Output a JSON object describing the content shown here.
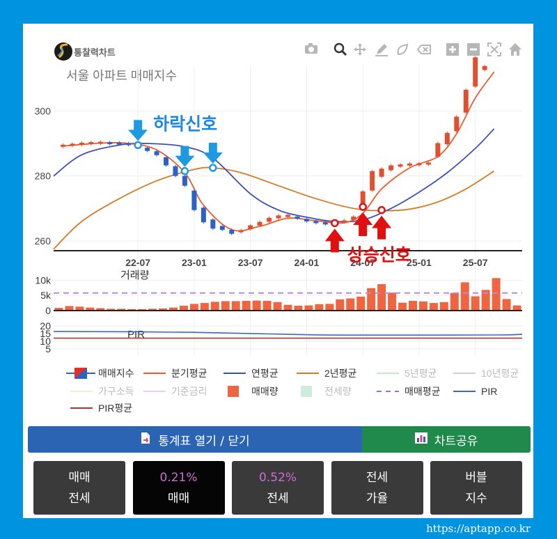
{
  "brand": {
    "name": "통찰력차트",
    "icon": "brand-logo-icon"
  },
  "toolbar": [
    "camera-icon",
    "zoom-icon",
    "pan-icon",
    "draw-line-icon",
    "draw-open-icon",
    "erase-icon",
    "zoom-in-icon",
    "zoom-out-icon",
    "autoscale-icon",
    "reset-home-icon"
  ],
  "chart_data": {
    "type": "line",
    "title": "서울 아파트 매매지수",
    "x_range": [
      "2021-10",
      "2025-12"
    ],
    "x_ticks": [
      "22-07",
      "23-01",
      "23-07",
      "24-01",
      "24-07",
      "25-01",
      "25-07"
    ],
    "y_ticks": [
      260,
      280,
      300
    ],
    "ylim": [
      257,
      314
    ],
    "annotations": [
      {
        "text": "하락신호",
        "color": "#1e88e5"
      },
      {
        "text": "상승신호",
        "color": "#e01010"
      }
    ],
    "down_signals": [
      {
        "date": "2022-07",
        "value": 289.5
      },
      {
        "date": "2022-12",
        "value": 281.5
      },
      {
        "date": "2023-03",
        "value": 282.5
      }
    ],
    "up_signals": [
      {
        "date": "2024-04",
        "value": 265.5
      },
      {
        "date": "2024-07",
        "value": 270.5
      },
      {
        "date": "2024-09",
        "value": 269.5
      }
    ],
    "series": [
      {
        "name": "매매지수",
        "color": "#e05030",
        "type": "candle",
        "points": [
          [
            "2021-11",
            289.3
          ],
          [
            "2021-12",
            289.6
          ],
          [
            "2022-01",
            289.9
          ],
          [
            "2022-02",
            290.1
          ],
          [
            "2022-03",
            290.2
          ],
          [
            "2022-04",
            290.1
          ],
          [
            "2022-05",
            290.0
          ],
          [
            "2022-06",
            289.8
          ],
          [
            "2022-07",
            289.2
          ],
          [
            "2022-08",
            288.2
          ],
          [
            "2022-09",
            287.0
          ],
          [
            "2022-10",
            284.5
          ],
          [
            "2022-11",
            281.5
          ],
          [
            "2022-12",
            278.5
          ],
          [
            "2023-01",
            272.5
          ],
          [
            "2023-02",
            268.0
          ],
          [
            "2023-03",
            265.2
          ],
          [
            "2023-04",
            264.0
          ],
          [
            "2023-05",
            262.8
          ],
          [
            "2023-06",
            263.0
          ],
          [
            "2023-07",
            264.2
          ],
          [
            "2023-08",
            265.3
          ],
          [
            "2023-09",
            266.5
          ],
          [
            "2023-10",
            267.4
          ],
          [
            "2023-11",
            267.7
          ],
          [
            "2023-12",
            267.2
          ],
          [
            "2024-01",
            266.4
          ],
          [
            "2024-02",
            265.8
          ],
          [
            "2024-03",
            265.4
          ],
          [
            "2024-04",
            265.3
          ],
          [
            "2024-05",
            266.0
          ],
          [
            "2024-06",
            267.0
          ],
          [
            "2024-07",
            272.5
          ],
          [
            "2024-08",
            278.5
          ],
          [
            "2024-09",
            281.0
          ],
          [
            "2024-10",
            282.5
          ],
          [
            "2024-11",
            283.2
          ],
          [
            "2024-12",
            283.5
          ],
          [
            "2025-01",
            283.6
          ],
          [
            "2025-02",
            283.8
          ],
          [
            "2025-03",
            288.0
          ],
          [
            "2025-04",
            291.5
          ],
          [
            "2025-05",
            296.0
          ],
          [
            "2025-06",
            303.0
          ],
          [
            "2025-07",
            312.0
          ],
          [
            "2025-08",
            313.2
          ]
        ]
      },
      {
        "name": "분기평균",
        "color": "#ee5a2a",
        "points": [
          [
            "2021-11",
            289.2
          ],
          [
            "2022-03",
            290.1
          ],
          [
            "2022-06",
            290.0
          ],
          [
            "2022-09",
            288.0
          ],
          [
            "2022-12",
            281.0
          ],
          [
            "2023-02",
            271.0
          ],
          [
            "2023-05",
            263.5
          ],
          [
            "2023-08",
            264.5
          ],
          [
            "2023-11",
            267.0
          ],
          [
            "2024-02",
            266.2
          ],
          [
            "2024-05",
            265.6
          ],
          [
            "2024-07",
            268.5
          ],
          [
            "2024-09",
            276.0
          ],
          [
            "2024-12",
            282.5
          ],
          [
            "2025-03",
            286.0
          ],
          [
            "2025-05",
            293.0
          ],
          [
            "2025-07",
            304.0
          ],
          [
            "2025-09",
            312.0
          ]
        ]
      },
      {
        "name": "연평균",
        "color": "#3a4fb8",
        "points": [
          [
            "2021-10",
            280.0
          ],
          [
            "2022-01",
            286.5
          ],
          [
            "2022-05",
            289.5
          ],
          [
            "2022-08",
            290.0
          ],
          [
            "2022-12",
            289.0
          ],
          [
            "2023-03",
            285.5
          ],
          [
            "2023-07",
            274.5
          ],
          [
            "2023-10",
            269.5
          ],
          [
            "2024-01",
            267.3
          ],
          [
            "2024-04",
            266.0
          ],
          [
            "2024-07",
            266.5
          ],
          [
            "2024-10",
            270.0
          ],
          [
            "2025-01",
            275.0
          ],
          [
            "2025-04",
            281.0
          ],
          [
            "2025-07",
            288.5
          ],
          [
            "2025-09",
            294.5
          ]
        ]
      },
      {
        "name": "2년평균",
        "color": "#d87a22",
        "points": [
          [
            "2021-10",
            257.5
          ],
          [
            "2022-01",
            266.0
          ],
          [
            "2022-05",
            273.0
          ],
          [
            "2022-09",
            278.5
          ],
          [
            "2023-01",
            282.0
          ],
          [
            "2023-03",
            282.5
          ],
          [
            "2023-06",
            281.0
          ],
          [
            "2023-10",
            277.0
          ],
          [
            "2024-02",
            273.0
          ],
          [
            "2024-06",
            270.0
          ],
          [
            "2024-09",
            269.3
          ],
          [
            "2024-12",
            269.8
          ],
          [
            "2025-03",
            272.0
          ],
          [
            "2025-06",
            276.0
          ],
          [
            "2025-09",
            281.5
          ]
        ]
      }
    ],
    "volume": {
      "title": "거래량",
      "y_ticks": [
        "10k",
        "5k",
        "0"
      ],
      "ylim": [
        0,
        11000
      ],
      "avg": 5800,
      "values": [
        900,
        1500,
        1300,
        1000,
        800,
        600,
        600,
        500,
        500,
        600,
        700,
        1000,
        1600,
        2200,
        2500,
        2900,
        3100,
        3100,
        3200,
        3300,
        3200,
        2800,
        1900,
        1600,
        1700,
        2100,
        2200,
        3700,
        4000,
        4600,
        7400,
        8700,
        5900,
        2600,
        3200,
        3000,
        2500,
        2800,
        5800,
        9300,
        4700,
        6800,
        10700,
        3800,
        1700
      ]
    },
    "pir": {
      "title": "PIR",
      "y_ticks": [
        "20",
        "15",
        "10",
        "5"
      ],
      "ylim": [
        0,
        20
      ],
      "values": [
        [
          0,
          16.4
        ],
        [
          0.3,
          15.8
        ],
        [
          0.55,
          14.2
        ],
        [
          0.75,
          14.0
        ],
        [
          0.95,
          14.1
        ],
        [
          1.0,
          14.5
        ]
      ],
      "avg": 12.0
    },
    "legend": [
      {
        "name": "매매지수",
        "kind": "candle",
        "color": "#1e88e5",
        "muted": false
      },
      {
        "name": "분기평균",
        "kind": "line",
        "color": "#ee5a2a",
        "muted": false
      },
      {
        "name": "연평균",
        "kind": "line",
        "color": "#3a4fb8",
        "muted": false
      },
      {
        "name": "2년평균",
        "kind": "line",
        "color": "#d87a22",
        "muted": false
      },
      {
        "name": "5년평균",
        "kind": "line",
        "color": "#8fd08f",
        "muted": true
      },
      {
        "name": "10년평균",
        "kind": "line",
        "color": "#a0a0a0",
        "muted": true
      },
      {
        "name": "가구소득",
        "kind": "line",
        "color": "#f1dfa0",
        "muted": true
      },
      {
        "name": "기준금리",
        "kind": "line",
        "color": "#cfa3d6",
        "muted": true
      },
      {
        "name": "매매량",
        "kind": "bar",
        "color": "#f06440",
        "muted": false
      },
      {
        "name": "전세량",
        "kind": "bar",
        "color": "#9fd8b8",
        "muted": true
      },
      {
        "name": "매매평균",
        "kind": "dash",
        "color": "#a071c4",
        "muted": false
      },
      {
        "name": "PIR",
        "kind": "line",
        "color": "#3a6ac0",
        "muted": false
      },
      {
        "name": "PIR평균",
        "kind": "line",
        "color": "#c0302a",
        "muted": false
      }
    ]
  },
  "buttons": {
    "stats_toggle": "통계표 열기 / 닫기",
    "share": "차트공유"
  },
  "tabs": [
    {
      "line1": "매매",
      "line2": "전세"
    },
    {
      "line1": "0.21%",
      "line2": "매매"
    },
    {
      "line1": "0.52%",
      "line2": "전세"
    },
    {
      "line1": "전세",
      "line2": "가율"
    },
    {
      "line1": "버블",
      "line2": "지수"
    }
  ],
  "footer_url": "https://aptapp.co.kr"
}
